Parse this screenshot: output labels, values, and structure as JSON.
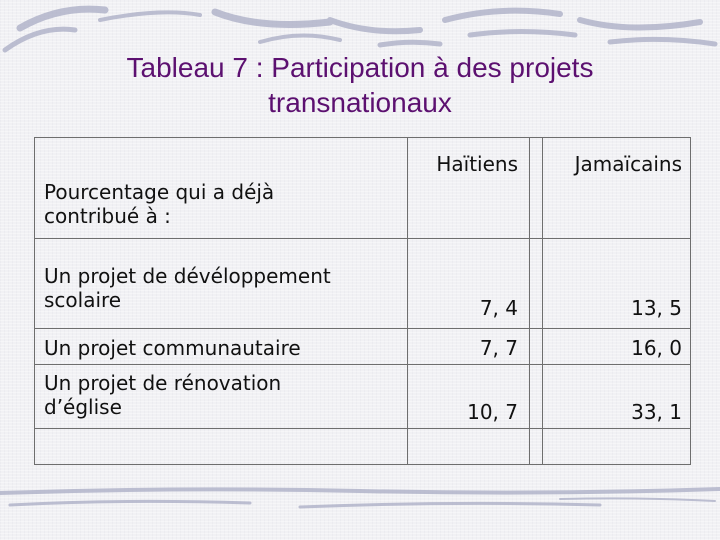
{
  "slide": {
    "title_line1": "Tableau 7 : Participation à des projets",
    "title_line2": "transnationaux"
  },
  "table": {
    "columns": [
      "Haïtiens",
      "Jamaïcains"
    ],
    "header_label": "Pourcentage qui a déjà contribué à :",
    "rows": [
      {
        "label": "Un projet de dévéloppement scolaire",
        "haitiens": "7, 4",
        "jamaicains": "13, 5"
      },
      {
        "label": "Un projet communautaire",
        "haitiens": "7, 7",
        "jamaicains": "16, 0"
      },
      {
        "label": "Un projet de rénovation d’église",
        "haitiens": "10, 7",
        "jamaicains": "33, 1"
      }
    ]
  },
  "colors": {
    "title": "#5c1070",
    "background": "#f1f1f4",
    "decoration": "#a9acc4",
    "grid": "#6e6e6e"
  }
}
